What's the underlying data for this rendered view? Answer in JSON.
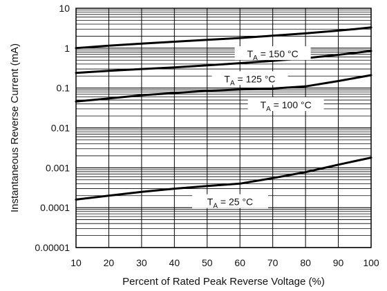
{
  "chart_data": {
    "type": "line",
    "title": "",
    "xlabel": "Percent of Rated Peak Reverse Voltage (%)",
    "ylabel": "Instantaneous Reverse Current (mA)",
    "xlim": [
      10,
      100
    ],
    "ylim": [
      1e-05,
      10
    ],
    "yscale": "log",
    "grid": true,
    "legend": "none",
    "x_ticks": [
      "10",
      "20",
      "30",
      "40",
      "50",
      "60",
      "70",
      "80",
      "90",
      "100"
    ],
    "y_ticks": [
      "10",
      "1",
      "0.1",
      "0.01",
      "0.001",
      "0.0001",
      "0.00001"
    ],
    "series": [
      {
        "name": "150 °C",
        "label": "T_A = 150 °C",
        "x": [
          10,
          20,
          30,
          40,
          50,
          60,
          70,
          80,
          90,
          95,
          100
        ],
        "y": [
          1.0,
          1.15,
          1.3,
          1.45,
          1.62,
          1.8,
          2.05,
          2.35,
          2.75,
          3.0,
          3.3
        ]
      },
      {
        "name": "125 °C",
        "label": "T_A = 125 °C",
        "x": [
          10,
          20,
          30,
          40,
          50,
          60,
          70,
          80,
          90,
          100
        ],
        "y": [
          0.24,
          0.27,
          0.3,
          0.33,
          0.37,
          0.42,
          0.48,
          0.56,
          0.68,
          0.85
        ]
      },
      {
        "name": "100 °C",
        "label": "T_A = 100 °C",
        "x": [
          10,
          20,
          30,
          40,
          50,
          60,
          70,
          80,
          90,
          100
        ],
        "y": [
          0.046,
          0.055,
          0.066,
          0.075,
          0.085,
          0.092,
          0.097,
          0.11,
          0.15,
          0.21
        ]
      },
      {
        "name": "25 °C",
        "label": "T_A = 25 °C",
        "x": [
          10,
          20,
          30,
          40,
          50,
          60,
          70,
          80,
          90,
          100
        ],
        "y": [
          0.00016,
          0.0002,
          0.00025,
          0.0003,
          0.00035,
          0.0004,
          0.00055,
          0.00078,
          0.0012,
          0.0018
        ]
      }
    ]
  }
}
